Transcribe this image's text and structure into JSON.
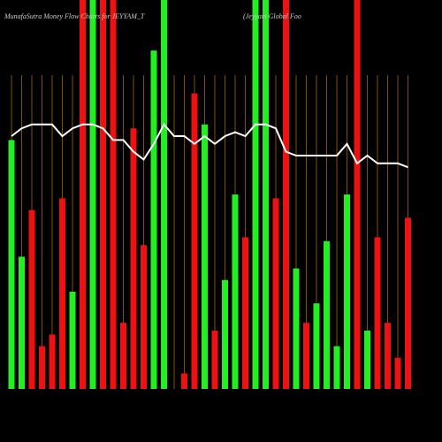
{
  "chart_data": {
    "type": "bar",
    "title": "MunafaSutra  Money Flow  Charts for JEYYAM_T",
    "subtitle": "(Jeyyam Global Foo",
    "ylim": [
      0,
      100
    ],
    "guide_color": "#a0640a",
    "series": [
      {
        "name": "Money Flow",
        "values": [
          64,
          34,
          46,
          11,
          14,
          49,
          25,
          100,
          100,
          100,
          100,
          17,
          67,
          37,
          87,
          100,
          0,
          4,
          76,
          68,
          15,
          28,
          50,
          39,
          100,
          100,
          49,
          100,
          31,
          17,
          22,
          38,
          11,
          50,
          100,
          15,
          39,
          17,
          8,
          44
        ],
        "colors": [
          "#22ee22",
          "#22ee22",
          "#ee1111",
          "#ee1111",
          "#ee1111",
          "#ee1111",
          "#22ee22",
          "#ee1111",
          "#22ee22",
          "#ee1111",
          "#ee1111",
          "#ee1111",
          "#ee1111",
          "#ee1111",
          "#22ee22",
          "#22ee22",
          "#22ee22",
          "#ee1111",
          "#ee1111",
          "#22ee22",
          "#ee1111",
          "#22ee22",
          "#22ee22",
          "#ee1111",
          "#22ee22",
          "#22ee22",
          "#ee1111",
          "#ee1111",
          "#22ee22",
          "#ee1111",
          "#22ee22",
          "#22ee22",
          "#22ee22",
          "#22ee22",
          "#ee1111",
          "#22ee22",
          "#ee1111",
          "#ee1111",
          "#ee1111",
          "#ee1111"
        ]
      },
      {
        "name": "Trend",
        "color": "#ffffff",
        "values": [
          65,
          67,
          68,
          68,
          68,
          65,
          67,
          68,
          68,
          67,
          64,
          64,
          61,
          59,
          63,
          68,
          65,
          65,
          63,
          65,
          63,
          65,
          66,
          65,
          68,
          68,
          67,
          61,
          60,
          60,
          60,
          60,
          60,
          63,
          58,
          60,
          58,
          58,
          58,
          57
        ]
      }
    ]
  }
}
